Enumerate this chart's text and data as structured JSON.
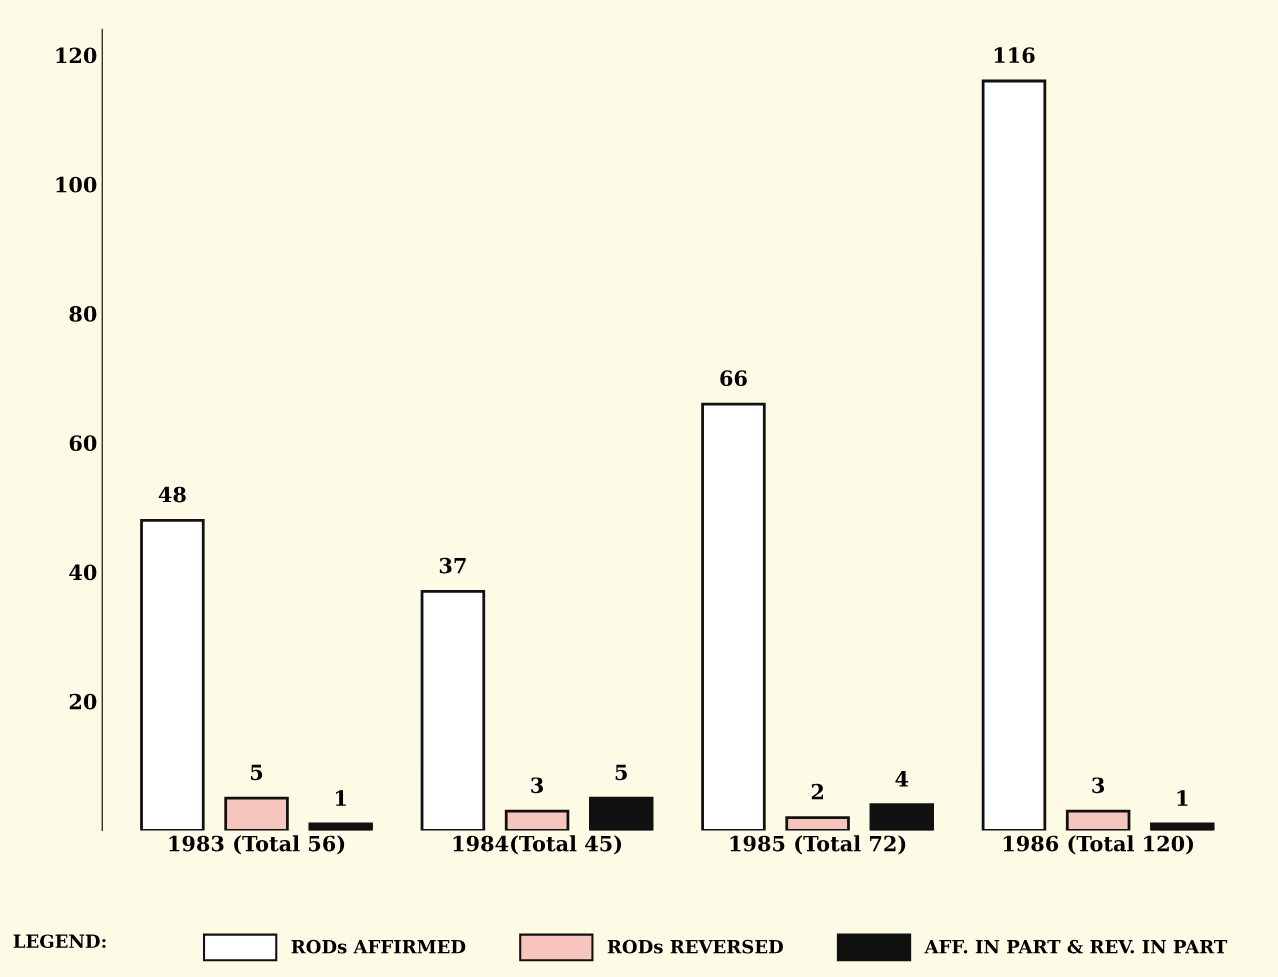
{
  "chart_data": {
    "type": "bar",
    "categories": [
      "1983 (Total 56)",
      "1984(Total 45)",
      "1985 (Total 72)",
      "1986 (Total 120)"
    ],
    "series": [
      {
        "name": "RODs AFFIRMED",
        "color": "#ffffff",
        "values": [
          48,
          37,
          66,
          116
        ]
      },
      {
        "name": "RODs REVERSED",
        "color": "#f6c5bd",
        "values": [
          5,
          3,
          2,
          3
        ]
      },
      {
        "name": "AFF. IN PART & REV. IN PART",
        "color": "#111111",
        "values": [
          1,
          5,
          4,
          1
        ]
      }
    ],
    "ylim": [
      0,
      124
    ],
    "yticks": [
      20,
      40,
      60,
      80,
      100,
      120
    ],
    "data_labels": true,
    "grid": false,
    "legend": "bottom",
    "legend_title": "LEGEND:"
  }
}
